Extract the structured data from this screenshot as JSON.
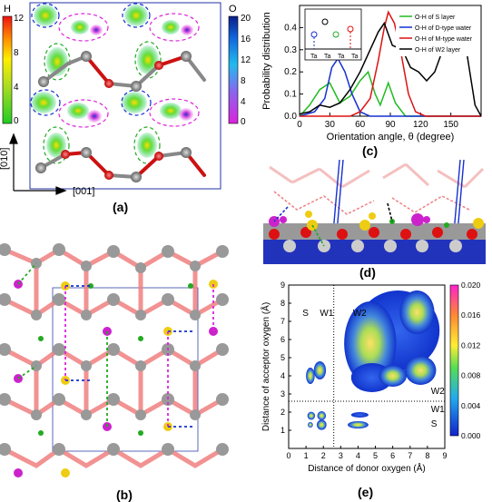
{
  "panels": {
    "a": {
      "label": "(a)",
      "colorbar_h": {
        "title": "H",
        "ticks": [
          "12",
          "8",
          "4",
          "0"
        ]
      },
      "colorbar_o": {
        "title": "O",
        "ticks": [
          "20",
          "16",
          "12",
          "8",
          "4",
          "0"
        ]
      },
      "axis_vertical": "[010]",
      "axis_horizontal": "[001]"
    },
    "b": {
      "label": "(b)"
    },
    "c": {
      "label": "(c)"
    },
    "d": {
      "label": "(d)"
    },
    "e": {
      "label": "(e)"
    }
  },
  "chart_data": [
    {
      "id": "c",
      "type": "line",
      "xlabel": "Orientation angle,  θ (degree)",
      "ylabel": "Probability distribution",
      "xlim": [
        0,
        180
      ],
      "ylim": [
        0,
        0.5
      ],
      "xticks": [
        "0",
        "30",
        "60",
        "90",
        "120",
        "150"
      ],
      "yticks": [
        "0.0",
        "0.1",
        "0.2",
        "0.3",
        "0.4"
      ],
      "legend_position": "top-right",
      "inset_labels": [
        "Ta",
        "Ta",
        "Ta",
        "Ta"
      ],
      "series": [
        {
          "name": "O-H of S layer",
          "color": "#22bb22",
          "points": [
            [
              0,
              0
            ],
            [
              10,
              0.05
            ],
            [
              20,
              0.12
            ],
            [
              30,
              0.15
            ],
            [
              40,
              0.06
            ],
            [
              50,
              0.09
            ],
            [
              60,
              0.16
            ],
            [
              68,
              0.2
            ],
            [
              75,
              0.1
            ],
            [
              80,
              0.05
            ],
            [
              88,
              0.15
            ],
            [
              95,
              0.06
            ],
            [
              105,
              0
            ],
            [
              180,
              0
            ]
          ]
        },
        {
          "name": "O-H of D-type water",
          "color": "#1530d0",
          "points": [
            [
              0,
              0
            ],
            [
              15,
              0.02
            ],
            [
              25,
              0.08
            ],
            [
              32,
              0.22
            ],
            [
              38,
              0.26
            ],
            [
              45,
              0.2
            ],
            [
              52,
              0.1
            ],
            [
              60,
              0.02
            ],
            [
              70,
              0
            ],
            [
              180,
              0
            ]
          ]
        },
        {
          "name": "O-H of M-type water",
          "color": "#dd1111",
          "points": [
            [
              0,
              0
            ],
            [
              50,
              0
            ],
            [
              60,
              0.02
            ],
            [
              70,
              0.08
            ],
            [
              78,
              0.25
            ],
            [
              84,
              0.4
            ],
            [
              88,
              0.47
            ],
            [
              94,
              0.42
            ],
            [
              100,
              0.3
            ],
            [
              108,
              0.1
            ],
            [
              115,
              0.02
            ],
            [
              125,
              0
            ],
            [
              180,
              0
            ]
          ]
        },
        {
          "name": "O-H of W2 layer",
          "color": "#000000",
          "points": [
            [
              0,
              0.01
            ],
            [
              10,
              0.02
            ],
            [
              20,
              0.05
            ],
            [
              30,
              0.04
            ],
            [
              40,
              0.06
            ],
            [
              50,
              0.12
            ],
            [
              60,
              0.2
            ],
            [
              70,
              0.3
            ],
            [
              78,
              0.38
            ],
            [
              84,
              0.42
            ],
            [
              92,
              0.32
            ],
            [
              102,
              0.3
            ],
            [
              110,
              0.22
            ],
            [
              118,
              0.2
            ],
            [
              126,
              0.16
            ],
            [
              134,
              0.2
            ],
            [
              142,
              0.3
            ],
            [
              150,
              0.38
            ],
            [
              158,
              0.4
            ],
            [
              166,
              0.28
            ],
            [
              174,
              0.05
            ],
            [
              180,
              0.0
            ]
          ]
        }
      ]
    },
    {
      "id": "e",
      "type": "heatmap",
      "xlabel": "Distance of donor oxygen (Å)",
      "ylabel": "Distance of acceptor oxygen (Å)",
      "xlim": [
        0,
        9
      ],
      "ylim": [
        0,
        9
      ],
      "xticks": [
        "0",
        "1",
        "2",
        "3",
        "4",
        "5",
        "6",
        "7",
        "8",
        "9"
      ],
      "yticks": [
        "1",
        "2",
        "3",
        "4",
        "5",
        "6",
        "7",
        "8",
        "9"
      ],
      "colorbar_ticks": [
        "0.020",
        "0.016",
        "0.012",
        "0.008",
        "0.004",
        "0.000"
      ],
      "region_labels": {
        "s_top": "S",
        "w1_top": "W1",
        "w2_top": "W2",
        "w2_right": "W2",
        "w1_right": "W1",
        "s_right": "S"
      }
    }
  ]
}
